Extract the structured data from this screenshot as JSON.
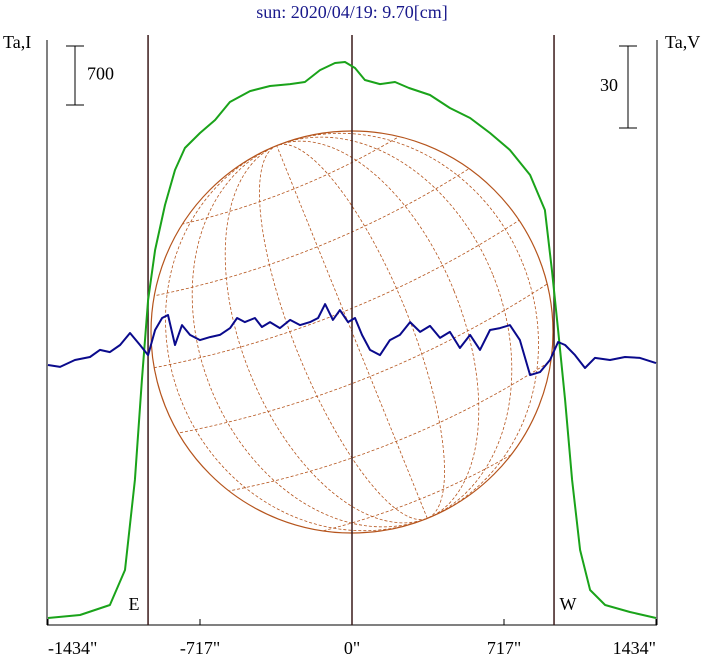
{
  "chart_data": {
    "type": "line",
    "title": "sun: 2020/04/19: 9.70[cm]",
    "y_label": "Ta,I",
    "y2_label": "Ta,V",
    "xlim": [
      -1434,
      1434
    ],
    "xticks": [
      {
        "value": -1434,
        "label": "-1434\""
      },
      {
        "value": -717,
        "label": "-717\""
      },
      {
        "value": 0,
        "label": "0\""
      },
      {
        "value": 717,
        "label": "717\""
      },
      {
        "value": 1434,
        "label": "1434\""
      }
    ],
    "ylim": [
      0,
      7000
    ],
    "y2lim": [
      -108,
      108
    ],
    "scale_bars": [
      {
        "value": 700,
        "axis": "y"
      },
      {
        "value": 30,
        "axis": "y2"
      }
    ],
    "vlines": [
      {
        "x": -962,
        "label": "E"
      },
      {
        "x": 0
      },
      {
        "x": 953,
        "label": "W"
      }
    ],
    "series": [
      {
        "name": "Ta,I",
        "color": "#1aa31a",
        "axis": "y",
        "x": [
          -1434,
          -1283,
          -1142,
          -1071,
          -1024,
          -991,
          -962,
          -929,
          -882,
          -835,
          -788,
          -717,
          -646,
          -576,
          -481,
          -387,
          -292,
          -222,
          -151,
          -80,
          -33,
          14,
          61,
          132,
          203,
          269,
          368,
          462,
          557,
          651,
          745,
          840,
          910,
          943,
          972,
          1005,
          1038,
          1076,
          1123,
          1194,
          1311,
          1434
        ],
        "values": [
          83,
          119,
          237,
          653,
          1720,
          2907,
          3856,
          4449,
          4983,
          5398,
          5659,
          5837,
          5991,
          6205,
          6334,
          6395,
          6418,
          6442,
          6584,
          6668,
          6680,
          6608,
          6466,
          6418,
          6442,
          6371,
          6288,
          6134,
          6015,
          5837,
          5635,
          5339,
          4924,
          4212,
          3500,
          2669,
          1720,
          890,
          415,
          237,
          154,
          83
        ]
      },
      {
        "name": "Ta,V",
        "color": "#0a0a8c",
        "axis": "y2",
        "x": [
          -1434,
          -1377,
          -1307,
          -1236,
          -1189,
          -1142,
          -1094,
          -1047,
          -1000,
          -962,
          -929,
          -896,
          -868,
          -835,
          -802,
          -764,
          -717,
          -670,
          -623,
          -575,
          -542,
          -505,
          -458,
          -425,
          -387,
          -340,
          -292,
          -245,
          -198,
          -160,
          -127,
          -90,
          -57,
          -19,
          14,
          47,
          85,
          132,
          179,
          226,
          274,
          321,
          368,
          415,
          462,
          509,
          557,
          604,
          651,
          698,
          745,
          792,
          840,
          887,
          934,
          972,
          1005,
          1052,
          1099,
          1146,
          1217,
          1288,
          1358,
          1434
        ],
        "values": [
          -12.8,
          -13.5,
          -11,
          -9.9,
          -7.3,
          -8.1,
          -5.5,
          -1.1,
          -5.5,
          -9.2,
          0,
          4.4,
          5.5,
          -5.5,
          1.8,
          -1.8,
          -3.7,
          -2.6,
          -1.8,
          0.7,
          4.4,
          2.9,
          4.4,
          1.1,
          2.9,
          0.7,
          3.7,
          1.8,
          2.9,
          4.4,
          9.5,
          3.7,
          7.3,
          2.9,
          4.4,
          -1.8,
          -7.3,
          -9.2,
          -3.7,
          -1.8,
          2.9,
          -0.7,
          1.5,
          -2.9,
          -0.7,
          -6.6,
          -1.8,
          -7.3,
          0,
          0.7,
          1.8,
          -3.7,
          -16.5,
          -15.4,
          -11,
          -4.4,
          -5.5,
          -9.2,
          -13.9,
          -10.2,
          -11,
          -9.9,
          -10.2,
          -12.1
        ]
      }
    ]
  }
}
